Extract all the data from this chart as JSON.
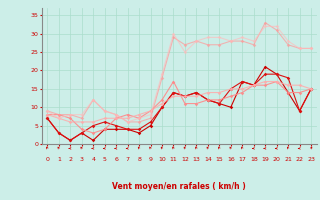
{
  "title": "",
  "xlabel": "Vent moyen/en rafales ( km/h )",
  "ylabel": "",
  "background_color": "#cceee8",
  "grid_color": "#aaddcc",
  "xlim": [
    -0.5,
    23.5
  ],
  "ylim": [
    0,
    37
  ],
  "yticks": [
    0,
    5,
    10,
    15,
    20,
    25,
    30,
    35
  ],
  "xticks": [
    0,
    1,
    2,
    3,
    4,
    5,
    6,
    7,
    8,
    9,
    10,
    11,
    12,
    13,
    14,
    15,
    16,
    17,
    18,
    19,
    20,
    21,
    22,
    23
  ],
  "series": [
    {
      "x": [
        0,
        1,
        2,
        3,
        4,
        5,
        6,
        7,
        8,
        9,
        10,
        11,
        12,
        13,
        14,
        15,
        16,
        17,
        18,
        19,
        20,
        21,
        22,
        23
      ],
      "y": [
        7,
        3,
        1,
        3,
        1,
        4,
        4,
        4,
        3,
        5,
        10,
        14,
        13,
        14,
        12,
        11,
        10,
        17,
        16,
        21,
        19,
        14,
        9,
        15
      ],
      "color": "#cc0000",
      "alpha": 1.0,
      "lw": 0.8,
      "marker": "D",
      "ms": 1.8
    },
    {
      "x": [
        0,
        1,
        2,
        3,
        4,
        5,
        6,
        7,
        8,
        9,
        10,
        11,
        12,
        13,
        14,
        15,
        16,
        17,
        18,
        19,
        20,
        21,
        22,
        23
      ],
      "y": [
        7,
        3,
        1,
        3,
        5,
        6,
        5,
        4,
        4,
        6,
        10,
        14,
        13,
        14,
        12,
        11,
        15,
        17,
        16,
        19,
        19,
        18,
        9,
        15
      ],
      "color": "#dd1111",
      "alpha": 1.0,
      "lw": 0.8,
      "marker": "D",
      "ms": 1.8
    },
    {
      "x": [
        0,
        1,
        2,
        3,
        4,
        5,
        6,
        7,
        8,
        9,
        10,
        11,
        12,
        13,
        14,
        15,
        16,
        17,
        18,
        19,
        20,
        21,
        22,
        23
      ],
      "y": [
        8,
        8,
        7,
        4,
        3,
        4,
        7,
        8,
        7,
        9,
        12,
        17,
        11,
        11,
        12,
        12,
        13,
        14,
        16,
        16,
        17,
        14,
        14,
        15
      ],
      "color": "#ff8888",
      "alpha": 0.9,
      "lw": 0.8,
      "marker": "D",
      "ms": 1.8
    },
    {
      "x": [
        0,
        1,
        2,
        3,
        4,
        5,
        6,
        7,
        8,
        9,
        10,
        11,
        12,
        13,
        14,
        15,
        16,
        17,
        18,
        19,
        20,
        21,
        22,
        23
      ],
      "y": [
        8,
        7,
        6,
        6,
        6,
        7,
        7,
        7,
        8,
        9,
        11,
        13,
        13,
        13,
        14,
        14,
        15,
        15,
        16,
        17,
        17,
        16,
        16,
        15
      ],
      "color": "#ffaaaa",
      "alpha": 0.85,
      "lw": 0.8,
      "marker": "D",
      "ms": 1.8
    },
    {
      "x": [
        0,
        1,
        2,
        3,
        4,
        5,
        6,
        7,
        8,
        9,
        10,
        11,
        12,
        13,
        14,
        15,
        16,
        17,
        18,
        19,
        20,
        21,
        22,
        23
      ],
      "y": [
        9,
        8,
        8,
        7,
        12,
        9,
        8,
        6,
        6,
        7,
        18,
        29,
        27,
        28,
        27,
        27,
        28,
        28,
        27,
        33,
        31,
        27,
        26,
        26
      ],
      "color": "#ff9999",
      "alpha": 0.7,
      "lw": 0.8,
      "marker": "D",
      "ms": 1.8
    },
    {
      "x": [
        0,
        1,
        2,
        3,
        4,
        5,
        6,
        7,
        8,
        9,
        10,
        11,
        12,
        13,
        14,
        15,
        16,
        17,
        18,
        19,
        20,
        21,
        22,
        23
      ],
      "y": [
        9,
        7,
        8,
        8,
        12,
        9,
        8,
        6,
        7,
        8,
        19,
        30,
        25,
        28,
        29,
        29,
        28,
        29,
        28,
        32,
        32,
        28,
        26,
        26
      ],
      "color": "#ffbbbb",
      "alpha": 0.65,
      "lw": 0.8,
      "marker": "D",
      "ms": 1.8
    }
  ],
  "arrow_color": "#cc0000",
  "arrow_angles": [
    225,
    225,
    270,
    225,
    270,
    270,
    270,
    270,
    225,
    225,
    225,
    225,
    225,
    225,
    225,
    225,
    225,
    225,
    270,
    270,
    270,
    225,
    270,
    135
  ]
}
